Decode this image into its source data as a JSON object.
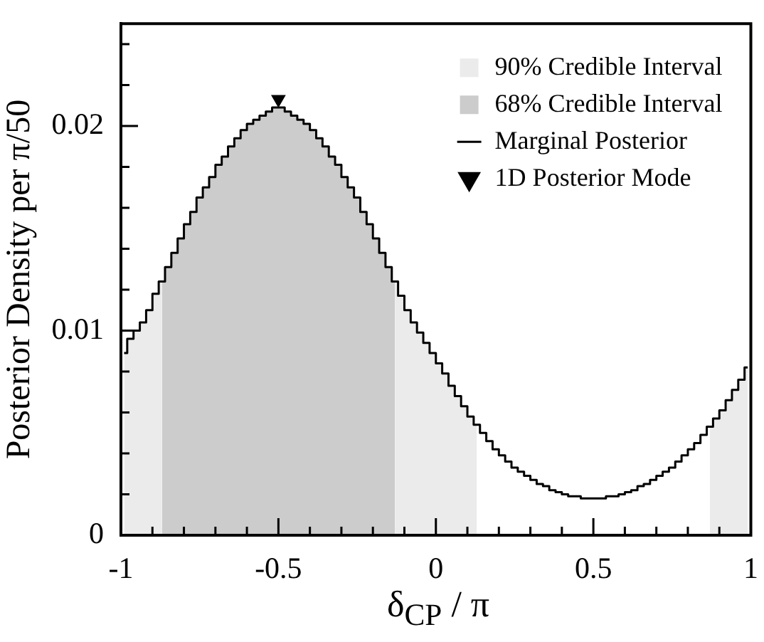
{
  "chart_data": {
    "type": "step",
    "xlabel": "δ$_{CP}$ / π",
    "ylabel": "Posterior Density per π/50",
    "x": [
      -0.99,
      -0.97,
      -0.95,
      -0.93,
      -0.91,
      -0.89,
      -0.87,
      -0.85,
      -0.83,
      -0.81,
      -0.79,
      -0.77,
      -0.75,
      -0.73,
      -0.71,
      -0.69,
      -0.67,
      -0.65,
      -0.63,
      -0.61,
      -0.59,
      -0.57,
      -0.55,
      -0.53,
      -0.51,
      -0.49,
      -0.47,
      -0.45,
      -0.43,
      -0.41,
      -0.39,
      -0.37,
      -0.35,
      -0.33,
      -0.31,
      -0.29,
      -0.27,
      -0.25,
      -0.23,
      -0.21,
      -0.19,
      -0.17,
      -0.15,
      -0.13,
      -0.11,
      -0.09,
      -0.07,
      -0.05,
      -0.03,
      -0.01,
      0.01,
      0.03,
      0.05,
      0.07,
      0.09,
      0.11,
      0.13,
      0.15,
      0.17,
      0.19,
      0.21,
      0.23,
      0.25,
      0.27,
      0.29,
      0.31,
      0.33,
      0.35,
      0.37,
      0.39,
      0.41,
      0.43,
      0.45,
      0.47,
      0.49,
      0.51,
      0.53,
      0.55,
      0.57,
      0.59,
      0.61,
      0.63,
      0.65,
      0.67,
      0.69,
      0.71,
      0.73,
      0.75,
      0.77,
      0.79,
      0.81,
      0.83,
      0.85,
      0.87,
      0.89,
      0.91,
      0.93,
      0.95,
      0.97,
      0.99
    ],
    "series": [
      {
        "name": "90% Credible Interval",
        "type": "area",
        "color": "#ebebeb",
        "values": [
          0.0089,
          0.0096,
          0.01,
          0.0104,
          0.011,
          0.0118,
          0.0124,
          null,
          null,
          null,
          null,
          null,
          null,
          null,
          null,
          null,
          null,
          null,
          null,
          null,
          null,
          null,
          null,
          null,
          null,
          null,
          null,
          null,
          null,
          null,
          null,
          null,
          null,
          null,
          null,
          null,
          null,
          null,
          null,
          null,
          null,
          null,
          null,
          0.0124,
          0.0117,
          0.011,
          0.0104,
          0.0099,
          0.0094,
          0.0089,
          0.0084,
          0.0079,
          0.0073,
          0.0068,
          0.0063,
          0.0058,
          0.0054,
          null,
          null,
          null,
          null,
          null,
          null,
          null,
          null,
          null,
          null,
          null,
          null,
          null,
          null,
          null,
          null,
          null,
          null,
          null,
          null,
          null,
          null,
          null,
          null,
          null,
          null,
          null,
          null,
          null,
          null,
          null,
          null,
          null,
          null,
          null,
          null,
          0.0053,
          0.0057,
          0.0061,
          0.0066,
          0.0071,
          0.0076,
          0.0082
        ]
      },
      {
        "name": "68% Credible Interval",
        "type": "area",
        "color": "#cccccc",
        "values": [
          null,
          null,
          null,
          null,
          null,
          null,
          0.0124,
          0.0131,
          0.0138,
          0.0145,
          0.0152,
          0.0158,
          0.0165,
          0.017,
          0.0175,
          0.0181,
          0.0185,
          0.019,
          0.0194,
          0.0198,
          0.0201,
          0.0203,
          0.0205,
          0.0207,
          0.0209,
          0.0209,
          0.0207,
          0.0205,
          0.0203,
          0.0201,
          0.0198,
          0.0194,
          0.019,
          0.0185,
          0.0181,
          0.0175,
          0.017,
          0.0165,
          0.0158,
          0.0152,
          0.0145,
          0.0138,
          0.0131,
          0.0124,
          null,
          null,
          null,
          null,
          null,
          null,
          null,
          null,
          null,
          null,
          null,
          null,
          null,
          null,
          null,
          null,
          null,
          null,
          null,
          null,
          null,
          null,
          null,
          null,
          null,
          null,
          null,
          null,
          null,
          null,
          null,
          null,
          null,
          null,
          null,
          null,
          null,
          null,
          null,
          null,
          null,
          null,
          null,
          null,
          null,
          null,
          null,
          null,
          null,
          null,
          null,
          null,
          null,
          null,
          null,
          null
        ]
      },
      {
        "name": "Marginal Posterior",
        "color": "#000000",
        "values": [
          0.0089,
          0.0096,
          0.01,
          0.0104,
          0.011,
          0.0118,
          0.0124,
          0.0131,
          0.0138,
          0.0145,
          0.0152,
          0.0158,
          0.0165,
          0.017,
          0.0175,
          0.0181,
          0.0185,
          0.019,
          0.0194,
          0.0198,
          0.0201,
          0.0203,
          0.0205,
          0.0207,
          0.0209,
          0.0209,
          0.0207,
          0.0205,
          0.0203,
          0.0201,
          0.0198,
          0.0194,
          0.019,
          0.0185,
          0.0181,
          0.0175,
          0.017,
          0.0165,
          0.0158,
          0.0152,
          0.0145,
          0.0138,
          0.0131,
          0.0124,
          0.0117,
          0.011,
          0.0104,
          0.0099,
          0.0094,
          0.0089,
          0.0084,
          0.0079,
          0.0073,
          0.0068,
          0.0063,
          0.0058,
          0.0054,
          0.005,
          0.0046,
          0.0042,
          0.0039,
          0.0036,
          0.0033,
          0.0031,
          0.0029,
          0.0027,
          0.0025,
          0.0024,
          0.0022,
          0.0021,
          0.002,
          0.0019,
          0.0019,
          0.0018,
          0.0018,
          0.0018,
          0.0018,
          0.0019,
          0.0019,
          0.002,
          0.0021,
          0.0022,
          0.0024,
          0.0025,
          0.0027,
          0.0029,
          0.0031,
          0.0033,
          0.0036,
          0.0039,
          0.0042,
          0.0045,
          0.0049,
          0.0053,
          0.0057,
          0.0061,
          0.0066,
          0.0071,
          0.0076,
          0.0082
        ]
      },
      {
        "name": "1D Posterior Mode",
        "type": "scatter",
        "color": "#000000",
        "marker": "triangle",
        "x": [
          -0.5
        ],
        "values": [
          0.0213
        ]
      }
    ],
    "xlim": [
      -1,
      1
    ],
    "xticks": [
      -1,
      {
        "value": -0.9,
        "label": null
      },
      {
        "value": -0.8,
        "label": null
      },
      {
        "value": -0.7,
        "label": null
      },
      {
        "value": -0.6,
        "label": null
      },
      -0.5,
      {
        "value": -0.4,
        "label": null
      },
      {
        "value": -0.3,
        "label": null
      },
      {
        "value": -0.2,
        "label": null
      },
      {
        "value": -0.1,
        "label": null
      },
      0,
      {
        "value": 0.1,
        "label": null
      },
      {
        "value": 0.2,
        "label": null
      },
      {
        "value": 0.3,
        "label": null
      },
      {
        "value": 0.4,
        "label": null
      },
      0.5,
      {
        "value": 0.6,
        "label": null
      },
      {
        "value": 0.7,
        "label": null
      },
      {
        "value": 0.8,
        "label": null
      },
      {
        "value": 0.9,
        "label": null
      },
      1
    ],
    "ylim": [
      0,
      0.025
    ],
    "yticks": [
      0,
      {
        "value": 0.002,
        "label": null
      },
      {
        "value": 0.004,
        "label": null
      },
      {
        "value": 0.006,
        "label": null
      },
      {
        "value": 0.008,
        "label": null
      },
      0.01,
      {
        "value": 0.012,
        "label": null
      },
      {
        "value": 0.014,
        "label": null
      },
      {
        "value": 0.016,
        "label": null
      },
      {
        "value": 0.018,
        "label": null
      },
      0.02,
      {
        "value": 0.022,
        "label": null
      },
      {
        "value": 0.024,
        "label": null
      }
    ],
    "legend": "top right"
  }
}
